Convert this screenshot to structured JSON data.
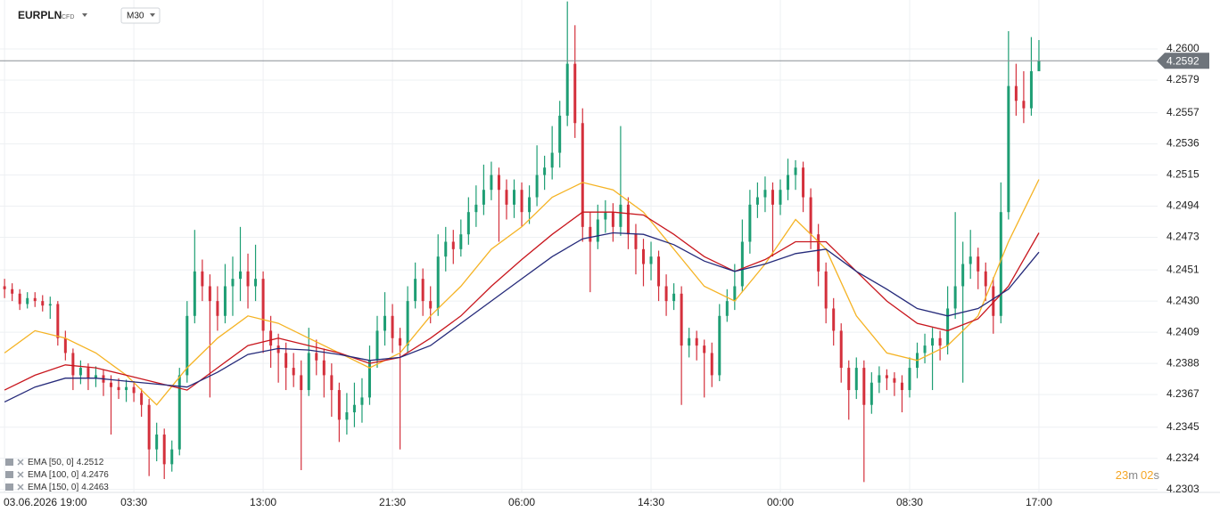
{
  "ui": {
    "symbol": "EURPLN",
    "instrument": "CFD",
    "interval": "M30",
    "countdown": [
      "23",
      "m",
      "02",
      "s"
    ]
  },
  "chart_data": {
    "type": "candlestick",
    "ylim": [
      4.2301,
      4.2633
    ],
    "yticks": [
      4.2303,
      4.2324,
      4.2345,
      4.2367,
      4.2388,
      4.2409,
      {
        "value": 4.243,
        "label": "4.2430"
      },
      4.2451,
      4.2473,
      4.2494,
      4.2515,
      4.2536,
      4.2557,
      4.2579,
      {
        "value": 4.26,
        "label": "4.2600"
      }
    ],
    "xlim": [
      -0.6,
      151.6
    ],
    "xticks": [
      {
        "value": 0,
        "label": "03.06.2026 19:00"
      },
      {
        "value": 17,
        "label": "03:30"
      },
      {
        "value": 34,
        "label": "13:00"
      },
      {
        "value": 51,
        "label": "21:30"
      },
      {
        "value": 68,
        "label": "06:00"
      },
      {
        "value": 85,
        "label": "14:30"
      },
      {
        "value": 102,
        "label": "00:00"
      },
      {
        "value": 119,
        "label": "08:30"
      },
      {
        "value": 136,
        "label": "17:00"
      }
    ],
    "grid": true,
    "up_color": "#1e9e74",
    "down_color": "#d4303c",
    "current_price": 4.2592,
    "candles": [
      [
        4.244,
        4.2445,
        4.2432,
        4.2438
      ],
      [
        4.2438,
        4.2442,
        4.243,
        4.2435
      ],
      [
        4.2435,
        4.2438,
        4.2424,
        4.2428
      ],
      [
        4.2428,
        4.2436,
        4.2425,
        4.2432
      ],
      [
        4.2432,
        4.2436,
        4.2426,
        4.243
      ],
      [
        4.243,
        4.2434,
        4.2423,
        4.2427
      ],
      [
        4.2427,
        4.2433,
        4.2418,
        4.2428
      ],
      [
        4.2428,
        4.243,
        4.24,
        4.2405
      ],
      [
        4.2405,
        4.241,
        4.239,
        4.2395
      ],
      [
        4.2395,
        4.2398,
        4.237,
        4.238
      ],
      [
        4.238,
        4.239,
        4.2374,
        4.2385
      ],
      [
        4.2385,
        4.2388,
        4.237,
        4.2378
      ],
      [
        4.2378,
        4.2386,
        4.2372,
        4.238
      ],
      [
        4.238,
        4.2384,
        4.2366,
        4.2375
      ],
      [
        4.2375,
        4.238,
        4.234,
        4.2372
      ],
      [
        4.2372,
        4.2378,
        4.2364,
        4.237
      ],
      [
        4.237,
        4.2377,
        4.2362,
        4.2372
      ],
      [
        4.2372,
        4.2376,
        4.2362,
        4.2368
      ],
      [
        4.2368,
        4.2371,
        4.2352,
        4.236
      ],
      [
        4.236,
        4.2364,
        4.2312,
        4.233
      ],
      [
        4.233,
        4.2348,
        4.2322,
        4.234
      ],
      [
        4.234,
        4.2344,
        4.231,
        4.232
      ],
      [
        4.232,
        4.2336,
        4.2315,
        4.233
      ],
      [
        4.233,
        4.2385,
        4.2326,
        4.238
      ],
      [
        4.238,
        4.243,
        4.2375,
        4.242
      ],
      [
        4.242,
        4.2478,
        4.2415,
        4.245
      ],
      [
        4.245,
        4.2458,
        4.243,
        4.244
      ],
      [
        4.244,
        4.2448,
        4.2365,
        4.243
      ],
      [
        4.243,
        4.244,
        4.241,
        4.242
      ],
      [
        4.242,
        4.2455,
        4.2415,
        4.244
      ],
      [
        4.244,
        4.246,
        4.242,
        4.2445
      ],
      [
        4.2445,
        4.248,
        4.243,
        4.245
      ],
      [
        4.245,
        4.2462,
        4.2425,
        4.244
      ],
      [
        4.244,
        4.2468,
        4.243,
        4.2445
      ],
      [
        4.2445,
        4.245,
        4.2395,
        4.241
      ],
      [
        4.241,
        4.242,
        4.2385,
        4.24
      ],
      [
        4.24,
        4.2408,
        4.2375,
        4.2395
      ],
      [
        4.2395,
        4.2402,
        4.237,
        4.2385
      ],
      [
        4.2385,
        4.2395,
        4.2372,
        4.238
      ],
      [
        4.238,
        4.239,
        4.2316,
        4.237
      ],
      [
        4.237,
        4.2412,
        4.2366,
        4.2395
      ],
      [
        4.2395,
        4.2404,
        4.238,
        4.239
      ],
      [
        4.239,
        4.2398,
        4.2365,
        4.238
      ],
      [
        4.238,
        4.2388,
        4.2352,
        4.237
      ],
      [
        4.237,
        4.2375,
        4.2335,
        4.235
      ],
      [
        4.235,
        4.2368,
        4.234,
        4.2355
      ],
      [
        4.2355,
        4.2375,
        4.2345,
        4.236
      ],
      [
        4.236,
        4.2378,
        4.2348,
        4.2365
      ],
      [
        4.2365,
        4.24,
        4.236,
        4.239
      ],
      [
        4.239,
        4.242,
        4.2385,
        4.241
      ],
      [
        4.241,
        4.2436,
        4.24,
        4.242
      ],
      [
        4.242,
        4.2428,
        4.2395,
        4.2405
      ],
      [
        4.2405,
        4.2412,
        4.233,
        4.24
      ],
      [
        4.24,
        4.244,
        4.2395,
        4.243
      ],
      [
        4.243,
        4.2456,
        4.2425,
        4.2445
      ],
      [
        4.2445,
        4.2452,
        4.242,
        4.243
      ],
      [
        4.243,
        4.244,
        4.2415,
        4.2425
      ],
      [
        4.2425,
        4.2475,
        4.242,
        4.246
      ],
      [
        4.246,
        4.248,
        4.245,
        4.247
      ],
      [
        4.247,
        4.2478,
        4.2455,
        4.2465
      ],
      [
        4.2465,
        4.2485,
        4.246,
        4.2475
      ],
      [
        4.2475,
        4.25,
        4.2468,
        4.249
      ],
      [
        4.249,
        4.2508,
        4.248,
        4.2495
      ],
      [
        4.2495,
        4.2522,
        4.2488,
        4.2505
      ],
      [
        4.2505,
        4.2524,
        4.2498,
        4.2515
      ],
      [
        4.2515,
        4.252,
        4.247,
        4.2505
      ],
      [
        4.2505,
        4.2512,
        4.2485,
        4.2495
      ],
      [
        4.2495,
        4.2512,
        4.2486,
        4.2505
      ],
      [
        4.2505,
        4.251,
        4.248,
        4.249
      ],
      [
        4.249,
        4.2508,
        4.2482,
        4.25
      ],
      [
        4.25,
        4.2535,
        4.2494,
        4.2515
      ],
      [
        4.2515,
        4.2528,
        4.2505,
        4.252
      ],
      [
        4.252,
        4.2548,
        4.2512,
        4.253
      ],
      [
        4.253,
        4.2565,
        4.252,
        4.2555
      ],
      [
        4.2555,
        4.2632,
        4.2548,
        4.259
      ],
      [
        4.259,
        4.2616,
        4.254,
        4.255
      ],
      [
        4.255,
        4.256,
        4.247,
        4.248
      ],
      [
        4.248,
        4.249,
        4.2436,
        4.247
      ],
      [
        4.247,
        4.2495,
        4.2465,
        4.2485
      ],
      [
        4.2485,
        4.2498,
        4.2476,
        4.249
      ],
      [
        4.249,
        4.2496,
        4.247,
        4.248
      ],
      [
        4.248,
        4.2548,
        4.2474,
        4.2495
      ],
      [
        4.2495,
        4.25,
        4.2465,
        4.2475
      ],
      [
        4.2475,
        4.2482,
        4.2448,
        4.2465
      ],
      [
        4.2465,
        4.2472,
        4.244,
        4.2455
      ],
      [
        4.2455,
        4.247,
        4.2444,
        4.246
      ],
      [
        4.246,
        4.2464,
        4.243,
        4.244
      ],
      [
        4.244,
        4.2448,
        4.242,
        4.243
      ],
      [
        4.243,
        4.2442,
        4.2424,
        4.2435
      ],
      [
        4.2435,
        4.244,
        4.236,
        4.24
      ],
      [
        4.24,
        4.2412,
        4.2392,
        4.2405
      ],
      [
        4.2405,
        4.241,
        4.239,
        4.24
      ],
      [
        4.24,
        4.2404,
        4.2365,
        4.2395
      ],
      [
        4.2395,
        4.2402,
        4.2372,
        4.238
      ],
      [
        4.238,
        4.2428,
        4.2376,
        4.242
      ],
      [
        4.242,
        4.2438,
        4.2416,
        4.243
      ],
      [
        4.243,
        4.2455,
        4.2424,
        4.244
      ],
      [
        4.244,
        4.2485,
        4.2436,
        4.247
      ],
      [
        4.247,
        4.2505,
        4.2462,
        4.2495
      ],
      [
        4.2495,
        4.251,
        4.2486,
        4.25
      ],
      [
        4.25,
        4.2514,
        4.249,
        4.2505
      ],
      [
        4.2505,
        4.251,
        4.246,
        4.2495
      ],
      [
        4.2495,
        4.2512,
        4.2488,
        4.2505
      ],
      [
        4.2505,
        4.2526,
        4.2498,
        4.2515
      ],
      [
        4.2515,
        4.2525,
        4.2505,
        4.252
      ],
      [
        4.252,
        4.2524,
        4.249,
        4.25
      ],
      [
        4.25,
        4.2506,
        4.2465,
        4.2475
      ],
      [
        4.2475,
        4.2482,
        4.244,
        4.245
      ],
      [
        4.245,
        4.2456,
        4.2415,
        4.2425
      ],
      [
        4.2425,
        4.2432,
        4.24,
        4.241
      ],
      [
        4.241,
        4.2415,
        4.2375,
        4.2385
      ],
      [
        4.2385,
        4.239,
        4.235,
        4.237
      ],
      [
        4.237,
        4.2392,
        4.2364,
        4.2385
      ],
      [
        4.2385,
        4.239,
        4.2308,
        4.236
      ],
      [
        4.236,
        4.2382,
        4.2354,
        4.2375
      ],
      [
        4.2375,
        4.2386,
        4.2368,
        4.238
      ],
      [
        4.238,
        4.2384,
        4.237,
        4.2378
      ],
      [
        4.2378,
        4.2382,
        4.2366,
        4.2375
      ],
      [
        4.2375,
        4.238,
        4.2355,
        4.237
      ],
      [
        4.237,
        4.2392,
        4.2365,
        4.2385
      ],
      [
        4.2385,
        4.2402,
        4.2378,
        4.2395
      ],
      [
        4.2395,
        4.2408,
        4.2388,
        4.24
      ],
      [
        4.24,
        4.2412,
        4.237,
        4.2405
      ],
      [
        4.2405,
        4.241,
        4.239,
        4.24
      ],
      [
        4.24,
        4.244,
        4.2394,
        4.2425
      ],
      [
        4.2425,
        4.249,
        4.2418,
        4.244
      ],
      [
        4.244,
        4.247,
        4.2375,
        4.2455
      ],
      [
        4.2455,
        4.2478,
        4.2445,
        4.246
      ],
      [
        4.246,
        4.2466,
        4.2438,
        4.245
      ],
      [
        4.245,
        4.2456,
        4.243,
        4.244
      ],
      [
        4.244,
        4.2446,
        4.2408,
        4.242
      ],
      [
        4.242,
        4.251,
        4.2415,
        4.249
      ],
      [
        4.249,
        4.2612,
        4.2485,
        4.2575
      ],
      [
        4.2575,
        4.259,
        4.2555,
        4.2565
      ],
      [
        4.2565,
        4.2585,
        4.255,
        4.256
      ],
      [
        4.256,
        4.2608,
        4.2555,
        4.2585
      ],
      [
        4.2585,
        4.2606,
        4.2586,
        4.2592
      ]
    ],
    "x": [
      0,
      4,
      8,
      12,
      16,
      20,
      24,
      28,
      32,
      36,
      40,
      44,
      48,
      52,
      56,
      60,
      64,
      68,
      72,
      76,
      80,
      84,
      88,
      92,
      96,
      100,
      104,
      108,
      112,
      116,
      120,
      124,
      128,
      132,
      136
    ],
    "series": [
      {
        "name": "EMA [50, 0]",
        "color": "#f5b324",
        "values": [
          4.2395,
          4.241,
          4.2405,
          4.2395,
          4.238,
          4.236,
          4.2385,
          4.2405,
          4.242,
          4.2415,
          4.2405,
          4.2395,
          4.2385,
          4.2395,
          4.242,
          4.244,
          4.2465,
          4.248,
          4.25,
          4.251,
          4.2505,
          4.249,
          4.2465,
          4.244,
          4.243,
          4.2455,
          4.2485,
          4.2465,
          4.242,
          4.2395,
          4.239,
          4.24,
          4.242,
          4.247,
          4.2512
        ]
      },
      {
        "name": "EMA [100, 0]",
        "color": "#c8161d",
        "values": [
          4.237,
          4.238,
          4.2387,
          4.2385,
          4.238,
          4.2375,
          4.237,
          4.2385,
          4.24,
          4.2405,
          4.24,
          4.2395,
          4.2388,
          4.2392,
          4.2405,
          4.242,
          4.244,
          4.2458,
          4.2475,
          4.249,
          4.249,
          4.2488,
          4.2475,
          4.246,
          4.245,
          4.2458,
          4.247,
          4.247,
          4.245,
          4.243,
          4.2415,
          4.241,
          4.2418,
          4.244,
          4.2476
        ]
      },
      {
        "name": "EMA [150, 0]",
        "color": "#252a7a",
        "values": [
          4.2362,
          4.2372,
          4.2378,
          4.2378,
          4.2376,
          4.2374,
          4.2372,
          4.2382,
          4.2394,
          4.2398,
          4.2397,
          4.2394,
          4.239,
          4.2392,
          4.24,
          4.2415,
          4.243,
          4.2445,
          4.246,
          4.2472,
          4.2476,
          4.2475,
          4.2468,
          4.2457,
          4.245,
          4.2455,
          4.2462,
          4.2465,
          4.245,
          4.2438,
          4.2425,
          4.242,
          4.2425,
          4.2438,
          4.2463
        ]
      }
    ]
  }
}
